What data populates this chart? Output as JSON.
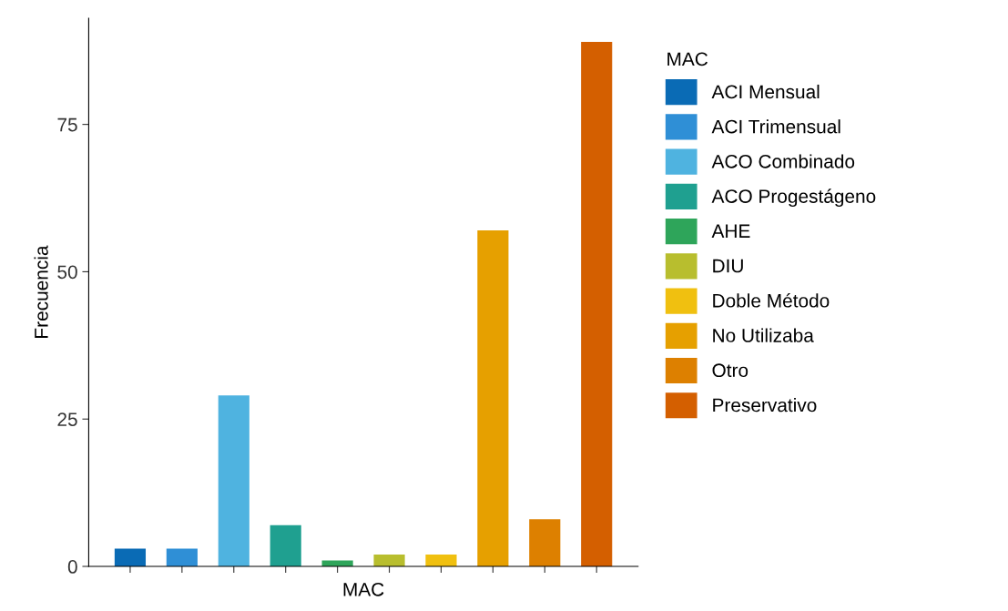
{
  "chart_data": {
    "type": "bar",
    "xlabel": "MAC",
    "ylabel": "Frecuencia",
    "legend_title": "MAC",
    "legend": "right",
    "categories": [
      null,
      null,
      null,
      null,
      null,
      null,
      null,
      null,
      null,
      null
    ],
    "ylim": [
      0,
      93
    ],
    "yticks": [
      0,
      25,
      50,
      75
    ],
    "tick_labels": "y",
    "grid": false,
    "series": [
      {
        "name": "ACI Mensual",
        "color": "#0a6bb5",
        "values": [
          3,
          null,
          null,
          null,
          null,
          null,
          null,
          null,
          null,
          null
        ]
      },
      {
        "name": "ACI Trimensual",
        "color": "#2f8fd6",
        "values": [
          null,
          3,
          null,
          null,
          null,
          null,
          null,
          null,
          null,
          null
        ]
      },
      {
        "name": "ACO Combinado",
        "color": "#4fb3e0",
        "values": [
          null,
          null,
          29,
          null,
          null,
          null,
          null,
          null,
          null,
          null
        ]
      },
      {
        "name": "ACO Progestágeno",
        "color": "#1fa090",
        "values": [
          null,
          null,
          null,
          7,
          null,
          null,
          null,
          null,
          null,
          null
        ]
      },
      {
        "name": "AHE",
        "color": "#2ea55a",
        "values": [
          null,
          null,
          null,
          null,
          1,
          null,
          null,
          null,
          null,
          null
        ]
      },
      {
        "name": "DIU",
        "color": "#b8be2e",
        "values": [
          null,
          null,
          null,
          null,
          null,
          2,
          null,
          null,
          null,
          null
        ]
      },
      {
        "name": "Doble Método",
        "color": "#f0c010",
        "values": [
          null,
          null,
          null,
          null,
          null,
          null,
          2,
          null,
          null,
          null
        ]
      },
      {
        "name": "No Utilizaba",
        "color": "#e6a000",
        "values": [
          null,
          null,
          null,
          null,
          null,
          null,
          null,
          57,
          null,
          null
        ]
      },
      {
        "name": "Otro",
        "color": "#dd8000",
        "values": [
          null,
          null,
          null,
          null,
          null,
          null,
          null,
          null,
          8,
          null
        ]
      },
      {
        "name": "Preservativo",
        "color": "#d45f00",
        "values": [
          null,
          null,
          null,
          null,
          null,
          null,
          null,
          null,
          null,
          89
        ]
      }
    ]
  }
}
